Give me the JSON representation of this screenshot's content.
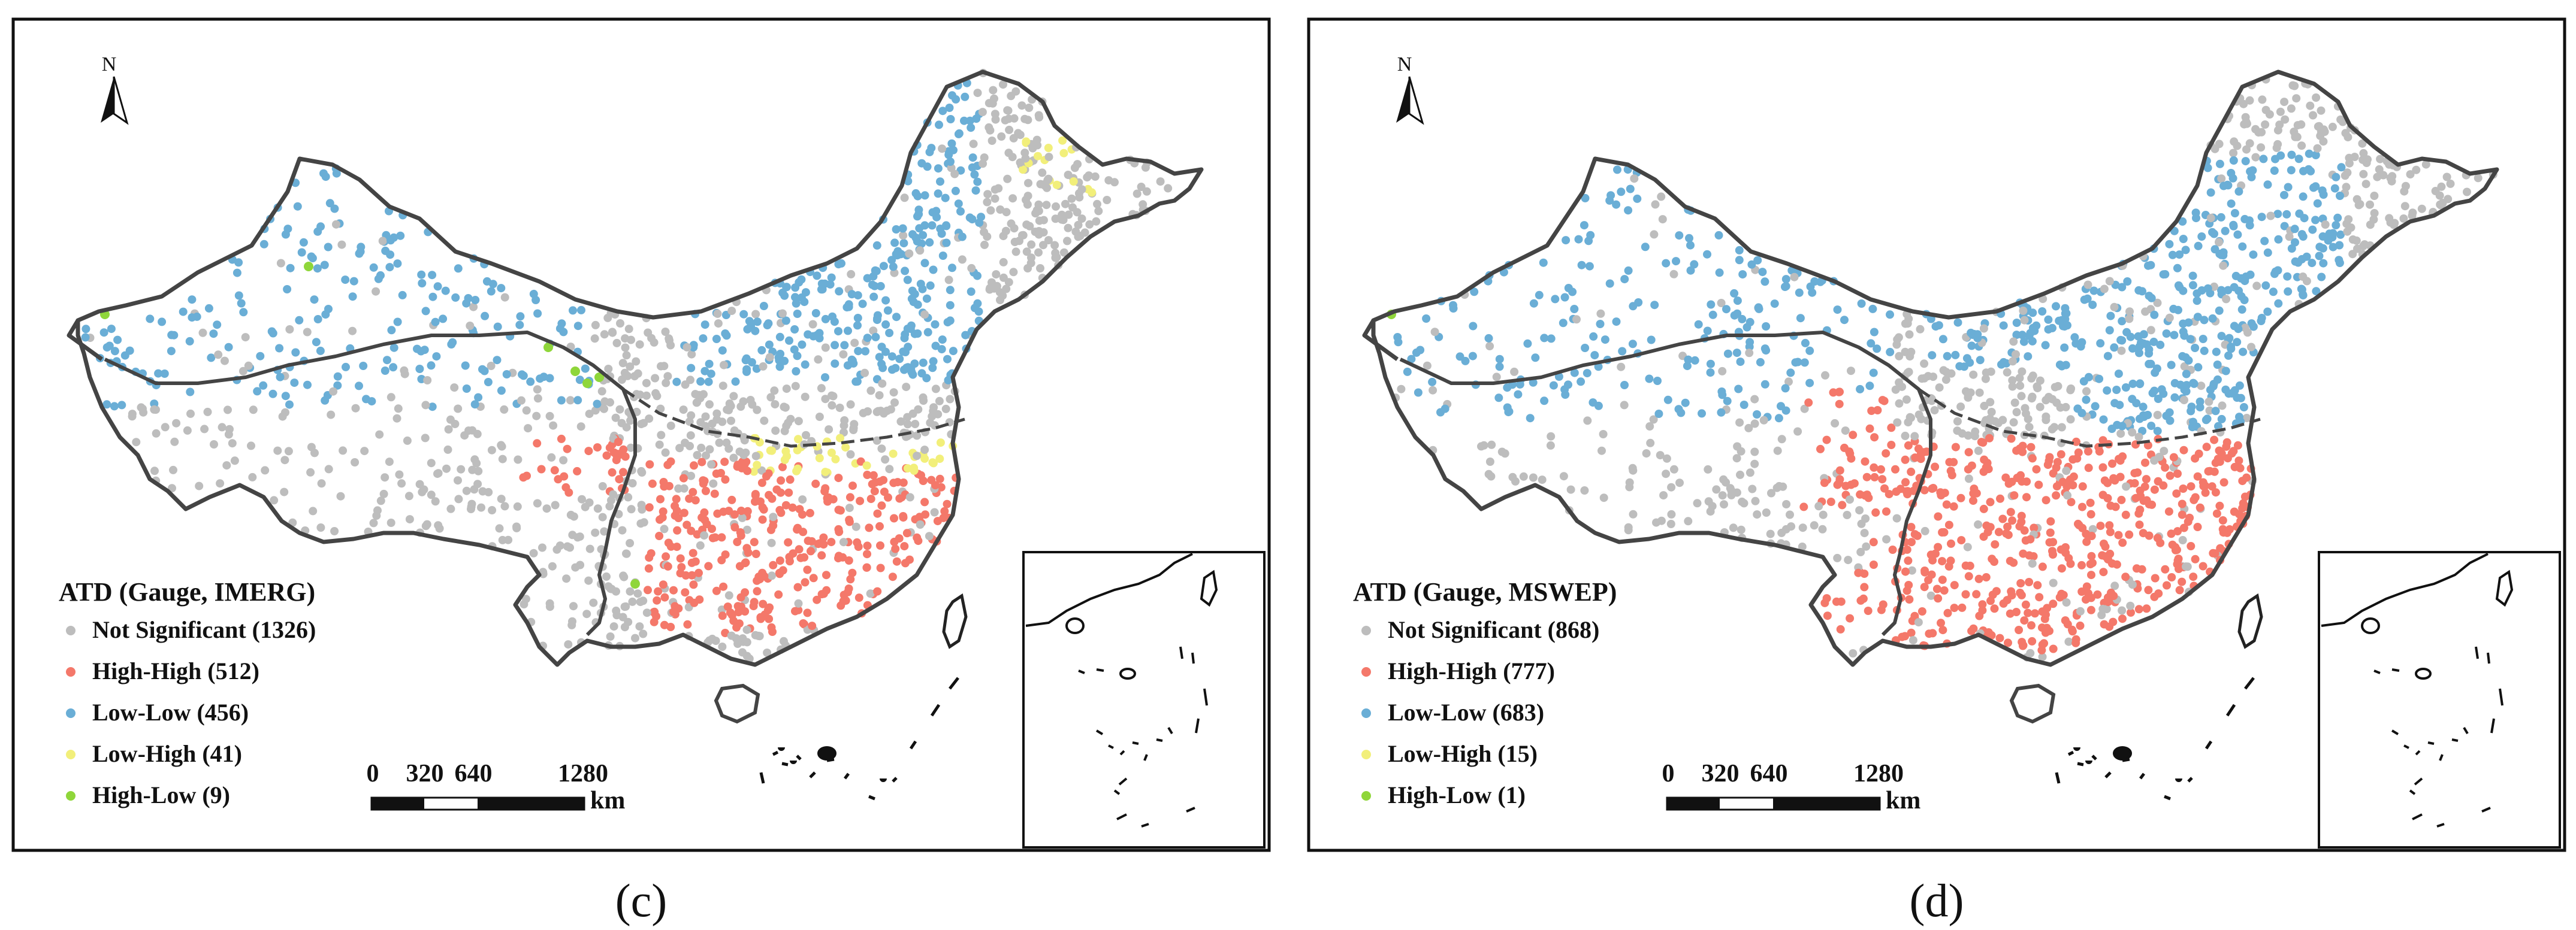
{
  "figure": {
    "panels": [
      {
        "label": "(c)",
        "legend": {
          "title": "ATD (Gauge, IMERG)",
          "items": [
            {
              "key": "not_significant",
              "label": "Not Significant (1326)",
              "count": 1326,
              "color": "#bdbdbd"
            },
            {
              "key": "high_high",
              "label": "High-High (512)",
              "count": 512,
              "color": "#f4786a"
            },
            {
              "key": "low_low",
              "label": "Low-Low (456)",
              "count": 456,
              "color": "#6aaed6"
            },
            {
              "key": "low_high",
              "label": "Low-High (41)",
              "count": 41,
              "color": "#f2ef7a"
            },
            {
              "key": "high_low",
              "label": "High-Low (9)",
              "count": 9,
              "color": "#8fd63a"
            }
          ]
        }
      },
      {
        "label": "(d)",
        "legend": {
          "title": "ATD (Gauge, MSWEP)",
          "items": [
            {
              "key": "not_significant",
              "label": "Not Significant (868)",
              "count": 868,
              "color": "#bdbdbd"
            },
            {
              "key": "high_high",
              "label": "High-High (777)",
              "count": 777,
              "color": "#f4786a"
            },
            {
              "key": "low_low",
              "label": "Low-Low (683)",
              "count": 683,
              "color": "#6aaed6"
            },
            {
              "key": "low_high",
              "label": "Low-High (15)",
              "count": 15,
              "color": "#f2ef7a"
            },
            {
              "key": "high_low",
              "label": "High-Low (1)",
              "count": 1,
              "color": "#8fd63a"
            }
          ]
        }
      }
    ],
    "north_arrow": "N",
    "scale_bar": {
      "ticks": [
        "0",
        "320",
        "640",
        "1280"
      ],
      "unit": "km"
    },
    "colors": {
      "boundary": "#444444",
      "frame": "#111111"
    }
  }
}
